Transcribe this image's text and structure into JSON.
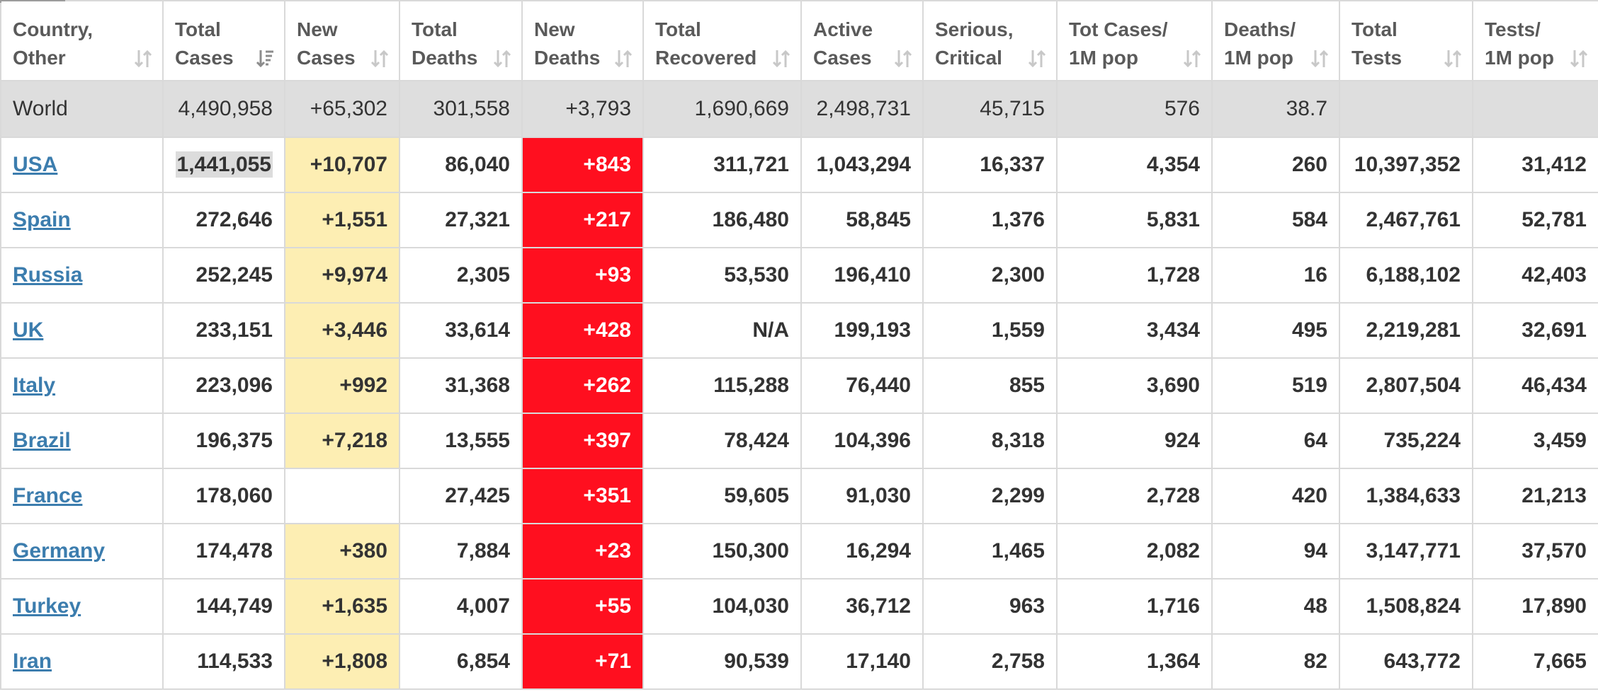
{
  "colors": {
    "header_text": "#5a5a5a",
    "link": "#3c7dae",
    "world_row_bg": "#dedede",
    "new_cases_bg": "#fdeeb3",
    "new_deaths_bg": "#ff0f1f",
    "grid": "#d9d9d9"
  },
  "columns": [
    {
      "label": "Country,\nOther",
      "icon": "sort-icon"
    },
    {
      "label": "Total\nCases",
      "icon": "sort-desc-icon"
    },
    {
      "label": "New\nCases",
      "icon": "sort-icon"
    },
    {
      "label": "Total\nDeaths",
      "icon": "sort-icon"
    },
    {
      "label": "New\nDeaths",
      "icon": "sort-icon"
    },
    {
      "label": "Total\nRecovered",
      "icon": "sort-icon"
    },
    {
      "label": "Active\nCases",
      "icon": "sort-icon"
    },
    {
      "label": "Serious,\nCritical",
      "icon": "sort-icon"
    },
    {
      "label": "Tot Cases/\n1M pop",
      "icon": "sort-icon"
    },
    {
      "label": "Deaths/\n1M pop",
      "icon": "sort-icon"
    },
    {
      "label": "Total\nTests",
      "icon": "sort-icon"
    },
    {
      "label": "Tests/\n1M pop",
      "icon": "sort-icon"
    }
  ],
  "world": {
    "country": "World",
    "total_cases": "4,490,958",
    "new_cases": "+65,302",
    "total_deaths": "301,558",
    "new_deaths": "+3,793",
    "total_recovered": "1,690,669",
    "active_cases": "2,498,731",
    "serious_critical": "45,715",
    "cases_per_1m": "576",
    "deaths_per_1m": "38.7",
    "total_tests": "",
    "tests_per_1m": ""
  },
  "rows": [
    {
      "country": "USA",
      "total_cases": "1,441,055",
      "new_cases": "+10,707",
      "total_deaths": "86,040",
      "new_deaths": "+843",
      "total_recovered": "311,721",
      "active_cases": "1,043,294",
      "serious_critical": "16,337",
      "cases_per_1m": "4,354",
      "deaths_per_1m": "260",
      "total_tests": "10,397,352",
      "tests_per_1m": "31,412"
    },
    {
      "country": "Spain",
      "total_cases": "272,646",
      "new_cases": "+1,551",
      "total_deaths": "27,321",
      "new_deaths": "+217",
      "total_recovered": "186,480",
      "active_cases": "58,845",
      "serious_critical": "1,376",
      "cases_per_1m": "5,831",
      "deaths_per_1m": "584",
      "total_tests": "2,467,761",
      "tests_per_1m": "52,781"
    },
    {
      "country": "Russia",
      "total_cases": "252,245",
      "new_cases": "+9,974",
      "total_deaths": "2,305",
      "new_deaths": "+93",
      "total_recovered": "53,530",
      "active_cases": "196,410",
      "serious_critical": "2,300",
      "cases_per_1m": "1,728",
      "deaths_per_1m": "16",
      "total_tests": "6,188,102",
      "tests_per_1m": "42,403"
    },
    {
      "country": "UK",
      "total_cases": "233,151",
      "new_cases": "+3,446",
      "total_deaths": "33,614",
      "new_deaths": "+428",
      "total_recovered": "N/A",
      "active_cases": "199,193",
      "serious_critical": "1,559",
      "cases_per_1m": "3,434",
      "deaths_per_1m": "495",
      "total_tests": "2,219,281",
      "tests_per_1m": "32,691"
    },
    {
      "country": "Italy",
      "total_cases": "223,096",
      "new_cases": "+992",
      "total_deaths": "31,368",
      "new_deaths": "+262",
      "total_recovered": "115,288",
      "active_cases": "76,440",
      "serious_critical": "855",
      "cases_per_1m": "3,690",
      "deaths_per_1m": "519",
      "total_tests": "2,807,504",
      "tests_per_1m": "46,434"
    },
    {
      "country": "Brazil",
      "total_cases": "196,375",
      "new_cases": "+7,218",
      "total_deaths": "13,555",
      "new_deaths": "+397",
      "total_recovered": "78,424",
      "active_cases": "104,396",
      "serious_critical": "8,318",
      "cases_per_1m": "924",
      "deaths_per_1m": "64",
      "total_tests": "735,224",
      "tests_per_1m": "3,459"
    },
    {
      "country": "France",
      "total_cases": "178,060",
      "new_cases": "",
      "total_deaths": "27,425",
      "new_deaths": "+351",
      "total_recovered": "59,605",
      "active_cases": "91,030",
      "serious_critical": "2,299",
      "cases_per_1m": "2,728",
      "deaths_per_1m": "420",
      "total_tests": "1,384,633",
      "tests_per_1m": "21,213"
    },
    {
      "country": "Germany",
      "total_cases": "174,478",
      "new_cases": "+380",
      "total_deaths": "7,884",
      "new_deaths": "+23",
      "total_recovered": "150,300",
      "active_cases": "16,294",
      "serious_critical": "1,465",
      "cases_per_1m": "2,082",
      "deaths_per_1m": "94",
      "total_tests": "3,147,771",
      "tests_per_1m": "37,570"
    },
    {
      "country": "Turkey",
      "total_cases": "144,749",
      "new_cases": "+1,635",
      "total_deaths": "4,007",
      "new_deaths": "+55",
      "total_recovered": "104,030",
      "active_cases": "36,712",
      "serious_critical": "963",
      "cases_per_1m": "1,716",
      "deaths_per_1m": "48",
      "total_tests": "1,508,824",
      "tests_per_1m": "17,890"
    },
    {
      "country": "Iran",
      "total_cases": "114,533",
      "new_cases": "+1,808",
      "total_deaths": "6,854",
      "new_deaths": "+71",
      "total_recovered": "90,539",
      "active_cases": "17,140",
      "serious_critical": "2,758",
      "cases_per_1m": "1,364",
      "deaths_per_1m": "82",
      "total_tests": "643,772",
      "tests_per_1m": "7,665"
    }
  ]
}
